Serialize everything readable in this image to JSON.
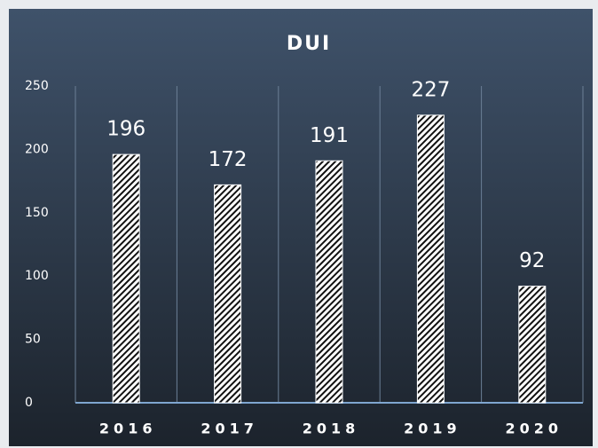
{
  "chart_data": {
    "type": "bar",
    "title": "DUI",
    "categories": [
      "2016",
      "2017",
      "2018",
      "2019",
      "2020"
    ],
    "values": [
      196,
      172,
      191,
      227,
      92
    ],
    "color": "#ffffff",
    "ylim": [
      0,
      250
    ],
    "yticks": [
      0,
      50,
      100,
      150,
      200,
      250
    ]
  }
}
